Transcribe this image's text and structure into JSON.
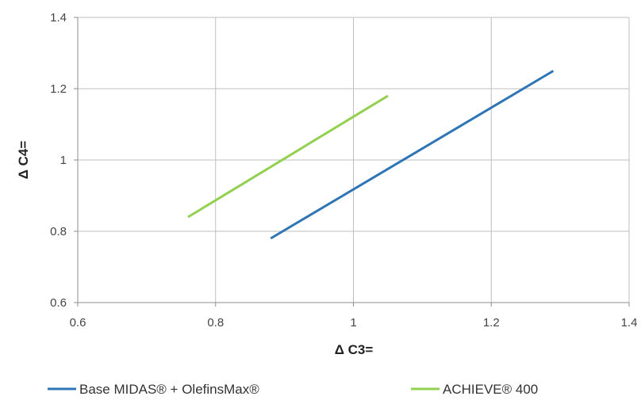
{
  "chart_data": {
    "type": "line",
    "title": "",
    "xlabel": "Δ C3=",
    "ylabel": "Δ C4=",
    "xlim": [
      0.6,
      1.4
    ],
    "ylim": [
      0.6,
      1.4
    ],
    "x_ticks": [
      "0.6",
      "0.8",
      "1",
      "1.2",
      "1.4"
    ],
    "y_ticks": [
      "0.6",
      "0.8",
      "1",
      "1.2",
      "1.4"
    ],
    "grid": true,
    "legend_position": "bottom",
    "series": [
      {
        "name": "Base MIDAS® + OlefinsMax®",
        "color": "#2e75b6",
        "x": [
          0.88,
          1.29
        ],
        "y": [
          0.78,
          1.25
        ]
      },
      {
        "name": "ACHIEVE® 400",
        "color": "#92d050",
        "x": [
          0.76,
          1.05
        ],
        "y": [
          0.84,
          1.18
        ]
      }
    ]
  }
}
